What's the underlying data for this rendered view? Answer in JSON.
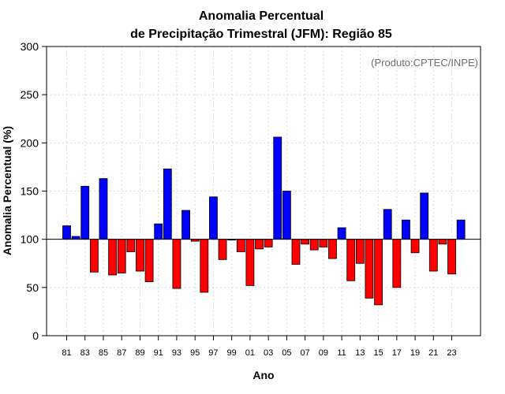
{
  "chart_data": {
    "type": "bar",
    "title": [
      "Anomalia Percentual",
      "de Precipitação Trimestral (JFM): Região 85"
    ],
    "xlabel": "Ano",
    "ylabel": "Anomalia Percentual (%)",
    "annotation": "(Produto:CPTEC/INPE)",
    "ylim": [
      0,
      300
    ],
    "yticks": [
      0,
      50,
      100,
      150,
      200,
      250,
      300
    ],
    "baseline": 100,
    "grid": true,
    "colors": {
      "above": "#0000ff",
      "below": "#ff0000"
    },
    "categories": [
      "81",
      "82",
      "83",
      "84",
      "85",
      "86",
      "87",
      "88",
      "89",
      "90",
      "91",
      "92",
      "93",
      "94",
      "95",
      "96",
      "97",
      "98",
      "99",
      "00",
      "01",
      "02",
      "03",
      "04",
      "05",
      "06",
      "07",
      "08",
      "09",
      "10",
      "11",
      "12",
      "13",
      "14",
      "15",
      "16",
      "17",
      "18",
      "19",
      "20",
      "21",
      "22",
      "23",
      "24"
    ],
    "xtick_labels": [
      "81",
      "83",
      "85",
      "87",
      "89",
      "91",
      "93",
      "95",
      "97",
      "99",
      "01",
      "03",
      "05",
      "07",
      "09",
      "11",
      "13",
      "15",
      "17",
      "19",
      "21",
      "23"
    ],
    "values": [
      114,
      103,
      155,
      66,
      163,
      63,
      65,
      87,
      67,
      56,
      116,
      173,
      49,
      130,
      98,
      45,
      144,
      79,
      100,
      87,
      52,
      90,
      92,
      206,
      150,
      74,
      95,
      89,
      92,
      80,
      112,
      57,
      75,
      39,
      32,
      131,
      50,
      120,
      86,
      148,
      67,
      95,
      64,
      120
    ]
  }
}
